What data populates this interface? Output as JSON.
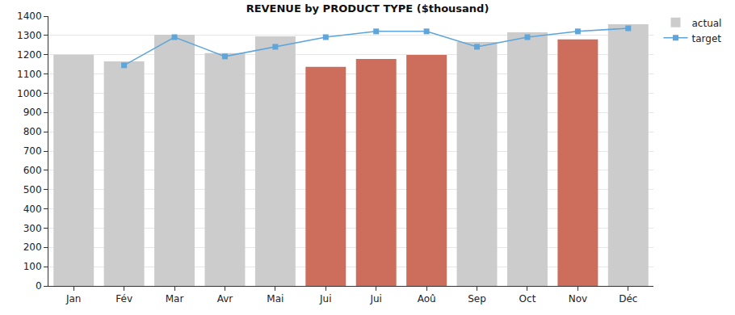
{
  "chart_data": {
    "type": "bar",
    "title": "REVENUE by PRODUCT TYPE ($thousand)",
    "categories": [
      "Jan",
      "Fév",
      "Mar",
      "Avr",
      "Mai",
      "Jui",
      "Jui",
      "Aoû",
      "Sep",
      "Oct",
      "Nov",
      "Déc"
    ],
    "series": [
      {
        "name": "actual",
        "type": "bar",
        "colors": [
          "#cccccc",
          "#cccccc",
          "#cccccc",
          "#cccccc",
          "#cccccc",
          "#cc6e5b",
          "#cc6e5b",
          "#cc6e5b",
          "#cccccc",
          "#cccccc",
          "#cc6e5b",
          "#cccccc"
        ],
        "values": [
          1200,
          1165,
          1304,
          1208,
          1295,
          1137,
          1178,
          1199,
          1266,
          1316,
          1279,
          1358
        ]
      },
      {
        "name": "target",
        "type": "line",
        "color": "#5da5da",
        "marker": "square",
        "values": [
          null,
          1145,
          1291,
          1191,
          1241,
          1291,
          1321,
          1321,
          1241,
          1291,
          1321,
          1337
        ]
      }
    ],
    "ylim": [
      0,
      1400
    ],
    "yticks": [
      0,
      100,
      200,
      300,
      400,
      500,
      600,
      700,
      800,
      900,
      1000,
      1100,
      1200,
      1300,
      1400
    ],
    "grid": true,
    "legend": "upper right"
  }
}
